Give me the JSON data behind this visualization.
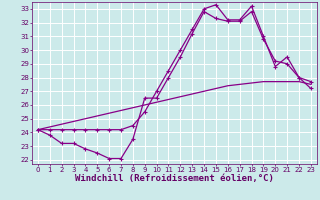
{
  "xlabel": "Windchill (Refroidissement éolien,°C)",
  "bg_color": "#cceaea",
  "grid_color": "#ffffff",
  "line_color": "#880088",
  "xlim": [
    -0.5,
    23.5
  ],
  "ylim": [
    21.7,
    33.5
  ],
  "xticks": [
    0,
    1,
    2,
    3,
    4,
    5,
    6,
    7,
    8,
    9,
    10,
    11,
    12,
    13,
    14,
    15,
    16,
    17,
    18,
    19,
    20,
    21,
    22,
    23
  ],
  "yticks": [
    22,
    23,
    24,
    25,
    26,
    27,
    28,
    29,
    30,
    31,
    32,
    33
  ],
  "line1_x": [
    0,
    1,
    2,
    3,
    4,
    5,
    6,
    7,
    8,
    9,
    10,
    11,
    12,
    13,
    14,
    15,
    16,
    17,
    18,
    19,
    20,
    21,
    22,
    23
  ],
  "line1_y": [
    24.2,
    23.8,
    23.2,
    23.2,
    22.8,
    22.5,
    22.1,
    22.1,
    23.5,
    26.5,
    26.5,
    28.0,
    29.5,
    31.2,
    32.8,
    32.3,
    32.1,
    32.1,
    32.8,
    30.8,
    29.2,
    29.0,
    28.0,
    27.7
  ],
  "line2_x": [
    0,
    1,
    2,
    3,
    4,
    5,
    6,
    7,
    8,
    9,
    10,
    11,
    12,
    13,
    14,
    15,
    16,
    17,
    18,
    19,
    20,
    21,
    22,
    23
  ],
  "line2_y": [
    24.2,
    24.4,
    24.6,
    24.8,
    25.0,
    25.2,
    25.4,
    25.6,
    25.8,
    26.0,
    26.2,
    26.4,
    26.6,
    26.8,
    27.0,
    27.2,
    27.4,
    27.5,
    27.6,
    27.7,
    27.7,
    27.7,
    27.7,
    27.5
  ],
  "line3_x": [
    0,
    1,
    2,
    3,
    4,
    5,
    6,
    7,
    8,
    9,
    10,
    11,
    12,
    13,
    14,
    15,
    16,
    17,
    18,
    19,
    20,
    21,
    22,
    23
  ],
  "line3_y": [
    24.2,
    24.2,
    24.2,
    24.2,
    24.2,
    24.2,
    24.2,
    24.2,
    24.5,
    25.5,
    27.0,
    28.5,
    30.0,
    31.5,
    33.0,
    33.3,
    32.2,
    32.2,
    33.2,
    31.0,
    28.8,
    29.5,
    28.0,
    27.2
  ],
  "font_color": "#660066",
  "tick_fontsize": 5.0,
  "xlabel_fontsize": 6.5,
  "linewidth": 0.9,
  "markersize": 3.0
}
